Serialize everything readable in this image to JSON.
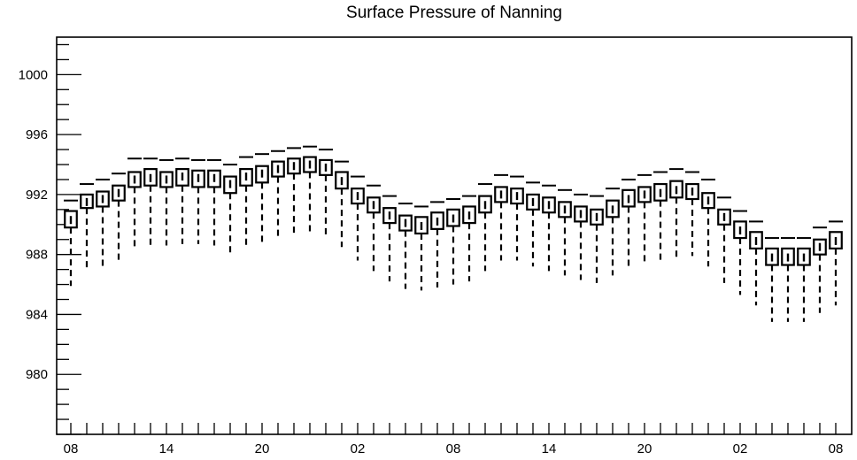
{
  "chart_data": {
    "type": "box",
    "title": "Surface Pressure of Nanning",
    "xlabel": "",
    "ylabel": "",
    "ylim": [
      976,
      1002.5
    ],
    "y_ticks": [
      980,
      984,
      988,
      992,
      996,
      1000
    ],
    "y_tick_labels": [
      "980",
      "984",
      "988",
      "992",
      "996",
      "1000"
    ],
    "x_tick_labels": [
      "08",
      "14",
      "20",
      "02",
      "08",
      "14",
      "20",
      "02",
      "08"
    ],
    "x_tick_positions": [
      0,
      6,
      12,
      18,
      24,
      30,
      36,
      42,
      48
    ],
    "grid": false,
    "legend": "none",
    "hours": [
      0,
      1,
      2,
      3,
      4,
      5,
      6,
      7,
      8,
      9,
      10,
      11,
      12,
      13,
      14,
      15,
      16,
      17,
      18,
      19,
      20,
      21,
      22,
      23,
      24,
      25,
      26,
      27,
      28,
      29,
      30,
      31,
      32,
      33,
      34,
      35,
      36,
      37,
      38,
      39,
      40,
      41,
      42,
      43,
      44,
      45,
      46,
      47,
      48
    ],
    "medians": [
      990.3,
      991.5,
      991.7,
      992.1,
      993.0,
      993.1,
      993.0,
      993.2,
      993.1,
      993.1,
      992.7,
      993.2,
      993.4,
      993.7,
      993.9,
      994.0,
      993.8,
      992.9,
      991.9,
      991.3,
      990.6,
      990.1,
      989.9,
      990.2,
      990.4,
      990.6,
      991.3,
      992.0,
      991.9,
      991.5,
      991.3,
      991.0,
      990.7,
      990.5,
      991.0,
      991.7,
      992.0,
      992.1,
      992.3,
      992.2,
      991.6,
      990.5,
      989.6,
      988.9,
      987.8,
      987.8,
      987.8,
      988.5,
      988.9
    ],
    "q1": [
      989.8,
      991.1,
      991.2,
      991.6,
      992.5,
      992.6,
      992.5,
      992.6,
      992.5,
      992.5,
      992.1,
      992.6,
      992.8,
      993.2,
      993.4,
      993.5,
      993.3,
      992.4,
      991.4,
      990.8,
      990.1,
      989.6,
      989.4,
      989.7,
      989.9,
      990.1,
      990.8,
      991.5,
      991.4,
      991.0,
      990.8,
      990.5,
      990.2,
      990.0,
      990.5,
      991.2,
      991.5,
      991.6,
      991.8,
      991.7,
      991.1,
      990.0,
      989.1,
      988.4,
      987.3,
      987.3,
      987.3,
      988.0,
      988.4
    ],
    "q3": [
      990.9,
      992.0,
      992.2,
      992.6,
      993.5,
      993.7,
      993.5,
      993.7,
      993.6,
      993.6,
      993.2,
      993.7,
      993.9,
      994.2,
      994.4,
      994.5,
      994.3,
      993.5,
      992.4,
      991.8,
      991.1,
      990.6,
      990.5,
      990.8,
      991.0,
      991.2,
      991.9,
      992.5,
      992.4,
      992.0,
      991.8,
      991.5,
      991.2,
      991.0,
      991.6,
      992.3,
      992.5,
      992.7,
      992.9,
      992.7,
      992.1,
      991.0,
      990.2,
      989.5,
      988.4,
      988.4,
      988.4,
      989.0,
      989.5
    ],
    "mins": [
      985.9,
      987.0,
      987.2,
      987.6,
      988.5,
      988.6,
      988.6,
      988.7,
      988.7,
      988.6,
      988.1,
      988.6,
      988.8,
      989.1,
      989.3,
      989.4,
      989.2,
      988.5,
      987.6,
      986.9,
      986.2,
      985.7,
      985.6,
      985.8,
      986.0,
      986.2,
      986.9,
      987.6,
      987.6,
      987.2,
      986.9,
      986.6,
      986.3,
      986.1,
      986.6,
      987.2,
      987.5,
      987.6,
      987.8,
      987.9,
      987.2,
      986.1,
      985.3,
      984.6,
      983.5,
      983.5,
      983.5,
      984.1,
      984.6
    ],
    "maxs": [
      991.6,
      992.7,
      993.0,
      993.4,
      994.4,
      994.4,
      994.3,
      994.4,
      994.3,
      994.3,
      994.0,
      994.5,
      994.7,
      994.9,
      995.1,
      995.2,
      995.0,
      994.2,
      993.2,
      992.6,
      991.9,
      991.4,
      991.2,
      991.5,
      991.7,
      991.9,
      992.7,
      993.3,
      993.2,
      992.8,
      992.6,
      992.3,
      992.0,
      991.9,
      992.4,
      993.0,
      993.3,
      993.5,
      993.7,
      993.5,
      993.0,
      991.8,
      990.9,
      990.2,
      989.1,
      989.1,
      989.1,
      989.8,
      990.2
    ]
  }
}
